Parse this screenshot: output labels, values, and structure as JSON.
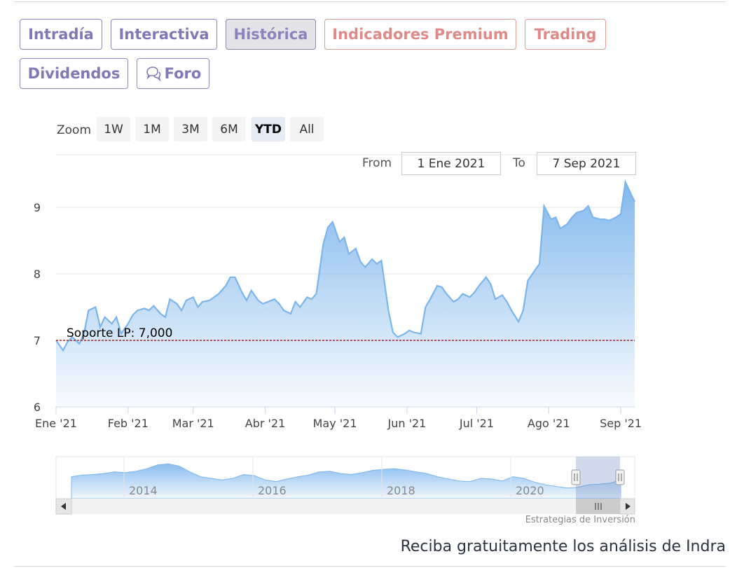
{
  "tabs": [
    {
      "label": "Intradía",
      "name": "tab-intradia",
      "kind": "normal"
    },
    {
      "label": "Interactiva",
      "name": "tab-interactiva",
      "kind": "normal"
    },
    {
      "label": "Histórica",
      "name": "tab-historica",
      "kind": "active"
    },
    {
      "label": "Indicadores Premium",
      "name": "tab-indicadores-premium",
      "kind": "premium"
    },
    {
      "label": "Trading",
      "name": "tab-trading",
      "kind": "premium"
    },
    {
      "label": "Dividendos",
      "name": "tab-dividendos",
      "kind": "normal"
    },
    {
      "label": "Foro",
      "name": "tab-foro",
      "kind": "normal",
      "icon": "speech-bubbles-icon"
    }
  ],
  "zoom": {
    "label": "Zoom",
    "options": [
      "1W",
      "1M",
      "3M",
      "6M",
      "YTD",
      "All"
    ],
    "selected": "YTD"
  },
  "range": {
    "from_label": "From",
    "from_value": "1 Ene 2021",
    "to_label": "To",
    "to_value": "7 Sep 2021"
  },
  "colors": {
    "accent": "#8178b8",
    "premium": "#e08a88",
    "series": "#7cb5ec",
    "support_line": "#8b0000"
  },
  "chart_data": {
    "type": "area",
    "y_ticks": [
      6,
      7,
      8,
      9
    ],
    "ylim": [
      6,
      9.4
    ],
    "x_ticks": [
      "Ene '21",
      "Feb '21",
      "Mar '21",
      "Abr '21",
      "May '21",
      "Jun '21",
      "Jul '21",
      "Ago '21",
      "Sep '21"
    ],
    "grid": true,
    "legend": "none",
    "support": {
      "label": "Soporte LP: 7,000",
      "value": 7.0
    },
    "series": [
      {
        "x": [
          "2021-01-01",
          "2021-01-04",
          "2021-01-06",
          "2021-01-08",
          "2021-01-11",
          "2021-01-13",
          "2021-01-15",
          "2021-01-18",
          "2021-01-20",
          "2021-01-22",
          "2021-01-25",
          "2021-01-27",
          "2021-01-29",
          "2021-02-01",
          "2021-02-03",
          "2021-02-05",
          "2021-02-08",
          "2021-02-10",
          "2021-02-12",
          "2021-02-15",
          "2021-02-17",
          "2021-02-19",
          "2021-02-22",
          "2021-02-24",
          "2021-02-26",
          "2021-03-01",
          "2021-03-03",
          "2021-03-05",
          "2021-03-08",
          "2021-03-10",
          "2021-03-12",
          "2021-03-15",
          "2021-03-17",
          "2021-03-19",
          "2021-03-22",
          "2021-03-24",
          "2021-03-26",
          "2021-03-29",
          "2021-03-31",
          "2021-04-05",
          "2021-04-07",
          "2021-04-09",
          "2021-04-12",
          "2021-04-14",
          "2021-04-16",
          "2021-04-19",
          "2021-04-21",
          "2021-04-23",
          "2021-04-26",
          "2021-04-28",
          "2021-04-30",
          "2021-05-03",
          "2021-05-05",
          "2021-05-07",
          "2021-05-10",
          "2021-05-12",
          "2021-05-14",
          "2021-05-17",
          "2021-05-19",
          "2021-05-21",
          "2021-05-24",
          "2021-05-26",
          "2021-05-28",
          "2021-05-31",
          "2021-06-02",
          "2021-06-04",
          "2021-06-07",
          "2021-06-09",
          "2021-06-11",
          "2021-06-14",
          "2021-06-16",
          "2021-06-18",
          "2021-06-21",
          "2021-06-23",
          "2021-06-25",
          "2021-06-28",
          "2021-06-30",
          "2021-07-02",
          "2021-07-05",
          "2021-07-07",
          "2021-07-09",
          "2021-07-12",
          "2021-07-14",
          "2021-07-16",
          "2021-07-19",
          "2021-07-21",
          "2021-07-23",
          "2021-07-26",
          "2021-07-28",
          "2021-07-30",
          "2021-08-02",
          "2021-08-04",
          "2021-08-06",
          "2021-08-09",
          "2021-08-11",
          "2021-08-13",
          "2021-08-16",
          "2021-08-18",
          "2021-08-20",
          "2021-08-23",
          "2021-08-25",
          "2021-08-27",
          "2021-08-30",
          "2021-09-01",
          "2021-09-03",
          "2021-09-07"
        ],
        "y": [
          7.0,
          6.85,
          6.98,
          7.05,
          6.95,
          7.1,
          7.45,
          7.5,
          7.2,
          7.35,
          7.25,
          7.35,
          7.1,
          7.25,
          7.38,
          7.45,
          7.48,
          7.45,
          7.52,
          7.4,
          7.35,
          7.62,
          7.55,
          7.45,
          7.6,
          7.65,
          7.5,
          7.58,
          7.6,
          7.65,
          7.7,
          7.82,
          7.95,
          7.95,
          7.72,
          7.6,
          7.75,
          7.6,
          7.55,
          7.62,
          7.55,
          7.45,
          7.4,
          7.58,
          7.5,
          7.65,
          7.62,
          7.7,
          8.45,
          8.7,
          8.78,
          8.48,
          8.55,
          8.3,
          8.38,
          8.18,
          8.1,
          8.22,
          8.15,
          8.2,
          7.45,
          7.12,
          7.05,
          7.1,
          7.15,
          7.12,
          7.1,
          7.5,
          7.62,
          7.82,
          7.8,
          7.7,
          7.58,
          7.62,
          7.7,
          7.65,
          7.72,
          7.82,
          7.95,
          7.85,
          7.62,
          7.68,
          7.58,
          7.45,
          7.28,
          7.45,
          7.9,
          8.05,
          8.15,
          9.02,
          8.82,
          8.85,
          8.68,
          8.75,
          8.85,
          8.92,
          8.95,
          9.02,
          8.85,
          8.82,
          8.82,
          8.8,
          8.85,
          8.9,
          9.38,
          9.08
        ]
      }
    ]
  },
  "navigator": {
    "years": [
      "2014",
      "2016",
      "2018",
      "2020"
    ],
    "handle_icon": "grip-icon",
    "scroll_left_icon": "arrow-left-icon",
    "scroll_right_icon": "arrow-right-icon"
  },
  "credits": "Estrategias de Inversión",
  "promo": "Reciba gratuitamente los análisis de Indra"
}
